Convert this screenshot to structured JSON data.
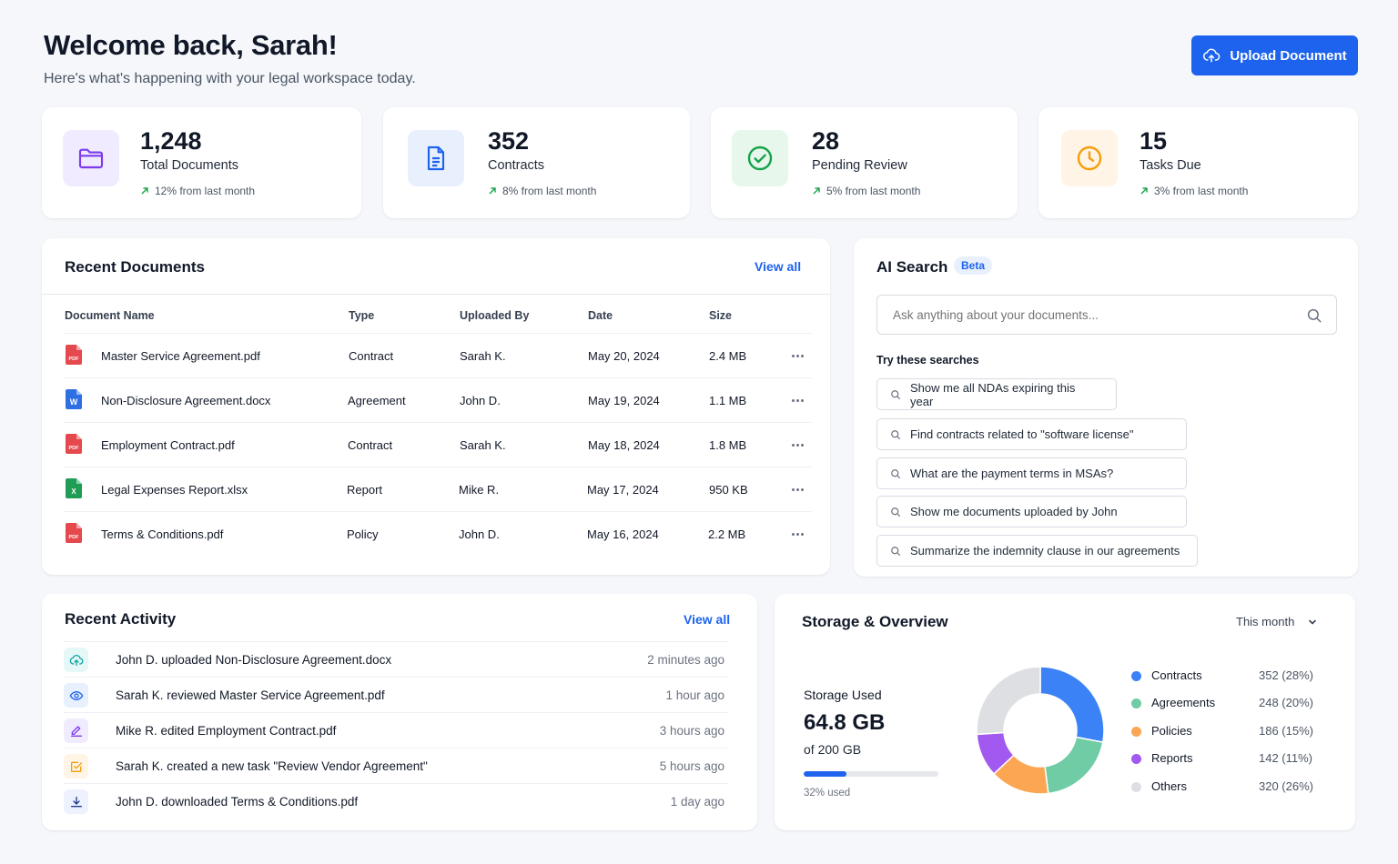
{
  "header": {
    "welcome": "Welcome back, Sarah!",
    "subtitle": "Here's what's happening with your legal workspace today.",
    "upload_label": "Upload Document"
  },
  "stats": [
    {
      "value": "1,248",
      "label": "Total Documents",
      "trend": "12% from last month",
      "icon": "folder-icon",
      "color": "#7c3aed",
      "bg": "#f1ebff"
    },
    {
      "value": "352",
      "label": "Contracts",
      "trend": "8% from last month",
      "icon": "document-icon",
      "color": "#1d63ed",
      "bg": "#e8f0fe"
    },
    {
      "value": "28",
      "label": "Pending Review",
      "trend": "5% from last month",
      "icon": "check-circle-icon",
      "color": "#16a34a",
      "bg": "#e7f7ec"
    },
    {
      "value": "15",
      "label": "Tasks Due",
      "trend": "3% from last month",
      "icon": "clock-icon",
      "color": "#f59e0b",
      "bg": "#fff4e5"
    }
  ],
  "recent_documents": {
    "title": "Recent Documents",
    "view_all": "View all",
    "columns": [
      "Document Name",
      "Type",
      "Uploaded By",
      "Date",
      "Size"
    ],
    "rows": [
      {
        "name": "Master Service Agreement.pdf",
        "type": "Contract",
        "uploaded_by": "Sarah K.",
        "date": "May 20, 2024",
        "size": "2.4 MB",
        "file_type": "pdf",
        "icon_text": "PDF"
      },
      {
        "name": "Non-Disclosure Agreement.docx",
        "type": "Agreement",
        "uploaded_by": "John D.",
        "date": "May 19, 2024",
        "size": "1.1 MB",
        "file_type": "docx",
        "icon_text": "W"
      },
      {
        "name": "Employment Contract.pdf",
        "type": "Contract",
        "uploaded_by": "Sarah K.",
        "date": "May 18, 2024",
        "size": "1.8 MB",
        "file_type": "pdf",
        "icon_text": "PDF"
      },
      {
        "name": "Legal Expenses Report.xlsx",
        "type": "Report",
        "uploaded_by": "Mike R.",
        "date": "May 17, 2024",
        "size": "950 KB",
        "file_type": "xlsx",
        "icon_text": "X"
      },
      {
        "name": "Terms & Conditions.pdf",
        "type": "Policy",
        "uploaded_by": "John D.",
        "date": "May 16, 2024",
        "size": "2.2 MB",
        "file_type": "pdf",
        "icon_text": "PDF"
      }
    ]
  },
  "ai_search": {
    "title": "AI Search",
    "badge": "Beta",
    "placeholder": "Ask anything about your documents...",
    "try_label": "Try these searches",
    "suggestions": [
      "Show me all NDAs expiring this year",
      "Find contracts related to \"software license\"",
      "What are the payment terms in MSAs?",
      "Show me documents uploaded by John",
      "Summarize the indemnity clause in our agreements"
    ]
  },
  "recent_activity": {
    "title": "Recent Activity",
    "view_all": "View all",
    "items": [
      {
        "text": "John D. uploaded Non-Disclosure Agreement.docx",
        "time": "2 minutes ago",
        "icon": "upload-cloud-icon",
        "color": "#0ea5a4",
        "bg": "#e6f7f7"
      },
      {
        "text": "Sarah K. reviewed Master Service Agreement.pdf",
        "time": "1 hour ago",
        "icon": "eye-icon",
        "color": "#1d63ed",
        "bg": "#e8f0fe"
      },
      {
        "text": "Mike R. edited Employment Contract.pdf",
        "time": "3 hours ago",
        "icon": "pencil-icon",
        "color": "#7c3aed",
        "bg": "#f1ebff"
      },
      {
        "text": "Sarah K. created a new task \"Review Vendor Agreement\"",
        "time": "5 hours ago",
        "icon": "task-check-icon",
        "color": "#f59e0b",
        "bg": "#fff4e5"
      },
      {
        "text": "John D. downloaded Terms & Conditions.pdf",
        "time": "1 day ago",
        "icon": "download-icon",
        "color": "#1e3a8a",
        "bg": "#eef2ff"
      }
    ]
  },
  "storage": {
    "title": "Storage & Overview",
    "period": "This month",
    "used_label": "Storage Used",
    "used_value": "64.8 GB",
    "total": "of 200 GB",
    "percent_label": "32% used",
    "percent": 32,
    "breakdown": [
      {
        "name": "Contracts",
        "value": "352 (28%)",
        "pct": 28,
        "color": "#3b82f6"
      },
      {
        "name": "Agreements",
        "value": "248 (20%)",
        "pct": 20,
        "color": "#6fcca5"
      },
      {
        "name": "Policies",
        "value": "186 (15%)",
        "pct": 15,
        "color": "#fba652"
      },
      {
        "name": "Reports",
        "value": "142 (11%)",
        "pct": 11,
        "color": "#a259f0"
      },
      {
        "name": "Others",
        "value": "320 (26%)",
        "pct": 26,
        "color": "#dedfe3"
      }
    ]
  }
}
